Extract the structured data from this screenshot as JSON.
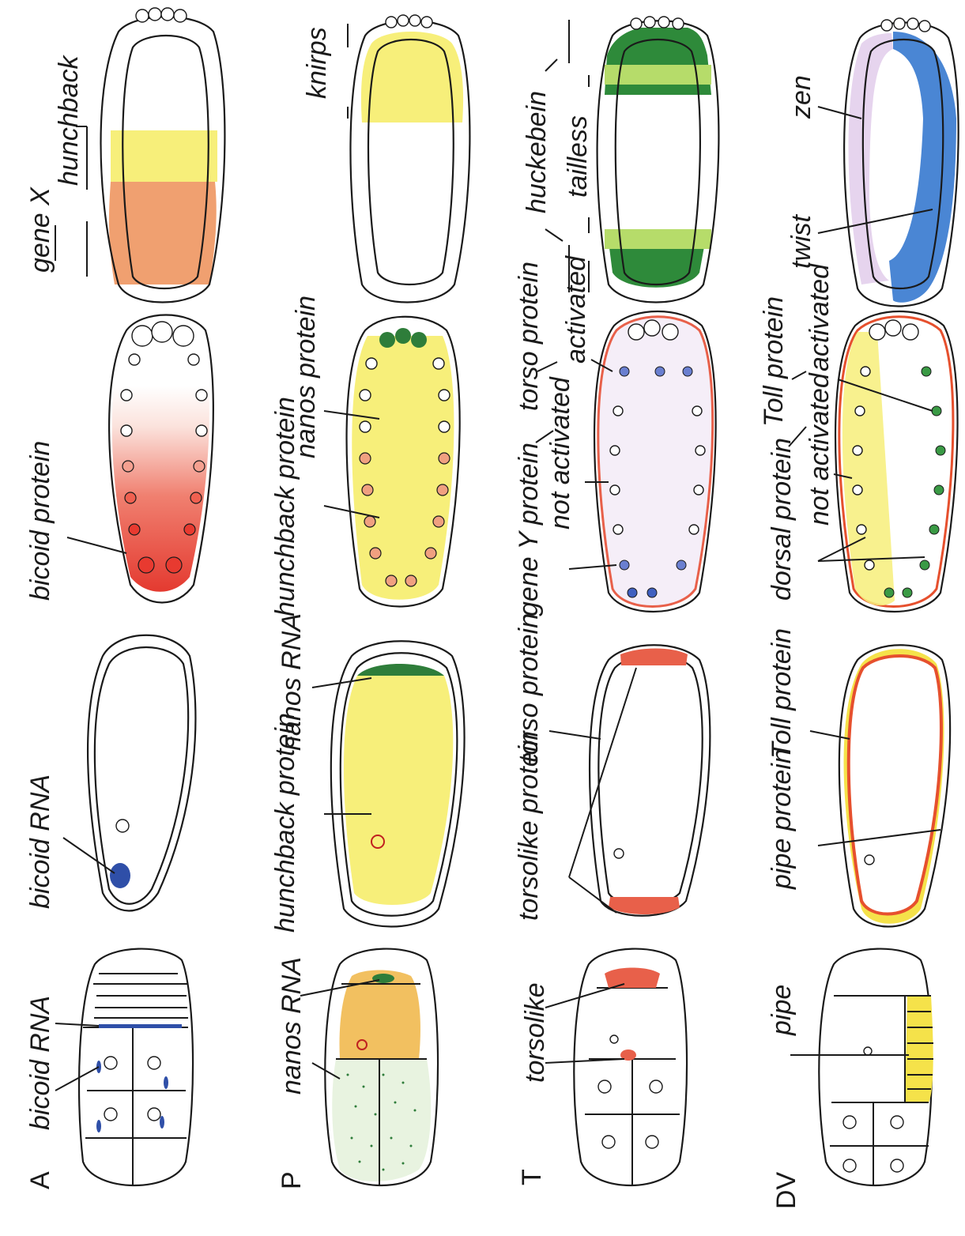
{
  "rows": {
    "A": {
      "letter": "A",
      "labels": {
        "oocyte_bicoid_rna": "bicoid RNA",
        "egg_bicoid_rna": "bicoid RNA",
        "bicoid_protein": "bicoid protein",
        "gene_x": "gene X",
        "hunchback": "hunchback"
      }
    },
    "P": {
      "letter": "P",
      "labels": {
        "oocyte_nanos_rna": "nanos RNA",
        "egg_nanos_rna": "nanos RNA",
        "egg_hunchback_protein": "hunchback protein",
        "embryo_hunchback_protein": "hunchback protein",
        "embryo_nanos_protein": "nanos protein",
        "knirps": "knirps"
      }
    },
    "T": {
      "letter": "T",
      "labels": {
        "oocyte_torsolike": "torsolike",
        "egg_torsolike_protein": "torsolike protein",
        "egg_torso_protein": "torso protein",
        "gene_y_protein": "gene Y protein",
        "not_activated": "not activated",
        "activated": "activated",
        "torso_protein": "torso protein",
        "huckebein": "huckebein",
        "tailless": "tailless"
      }
    },
    "DV": {
      "letter": "DV",
      "labels": {
        "oocyte_pipe": "pipe",
        "pipe_protein": "pipe protein",
        "toll_protein_egg": "Toll protein",
        "dorsal_protein": "dorsal protein",
        "not_activated": "not activated",
        "activated": "activated",
        "toll_protein": "Toll protein",
        "twist": "twist",
        "zen": "zen"
      }
    }
  },
  "colors": {
    "bicoid_rna": "#2f4fa8",
    "bicoid_protein": "#e04a3c",
    "hunchback_yellow": "#f7ef7a",
    "gene_x_orange": "#f0a070",
    "nanos_green": "#2e7d3a",
    "torsolike_red": "#e8604a",
    "torso_lilac": "#ddd0ee",
    "gene_y_blue": "#5a72c8",
    "pipe_yellow": "#f5e24a",
    "toll_orange": "#e6502e",
    "dorsal_green": "#3a9a45",
    "twist_blue": "#4a86d4",
    "zen_lilac": "#e6d4ee"
  }
}
